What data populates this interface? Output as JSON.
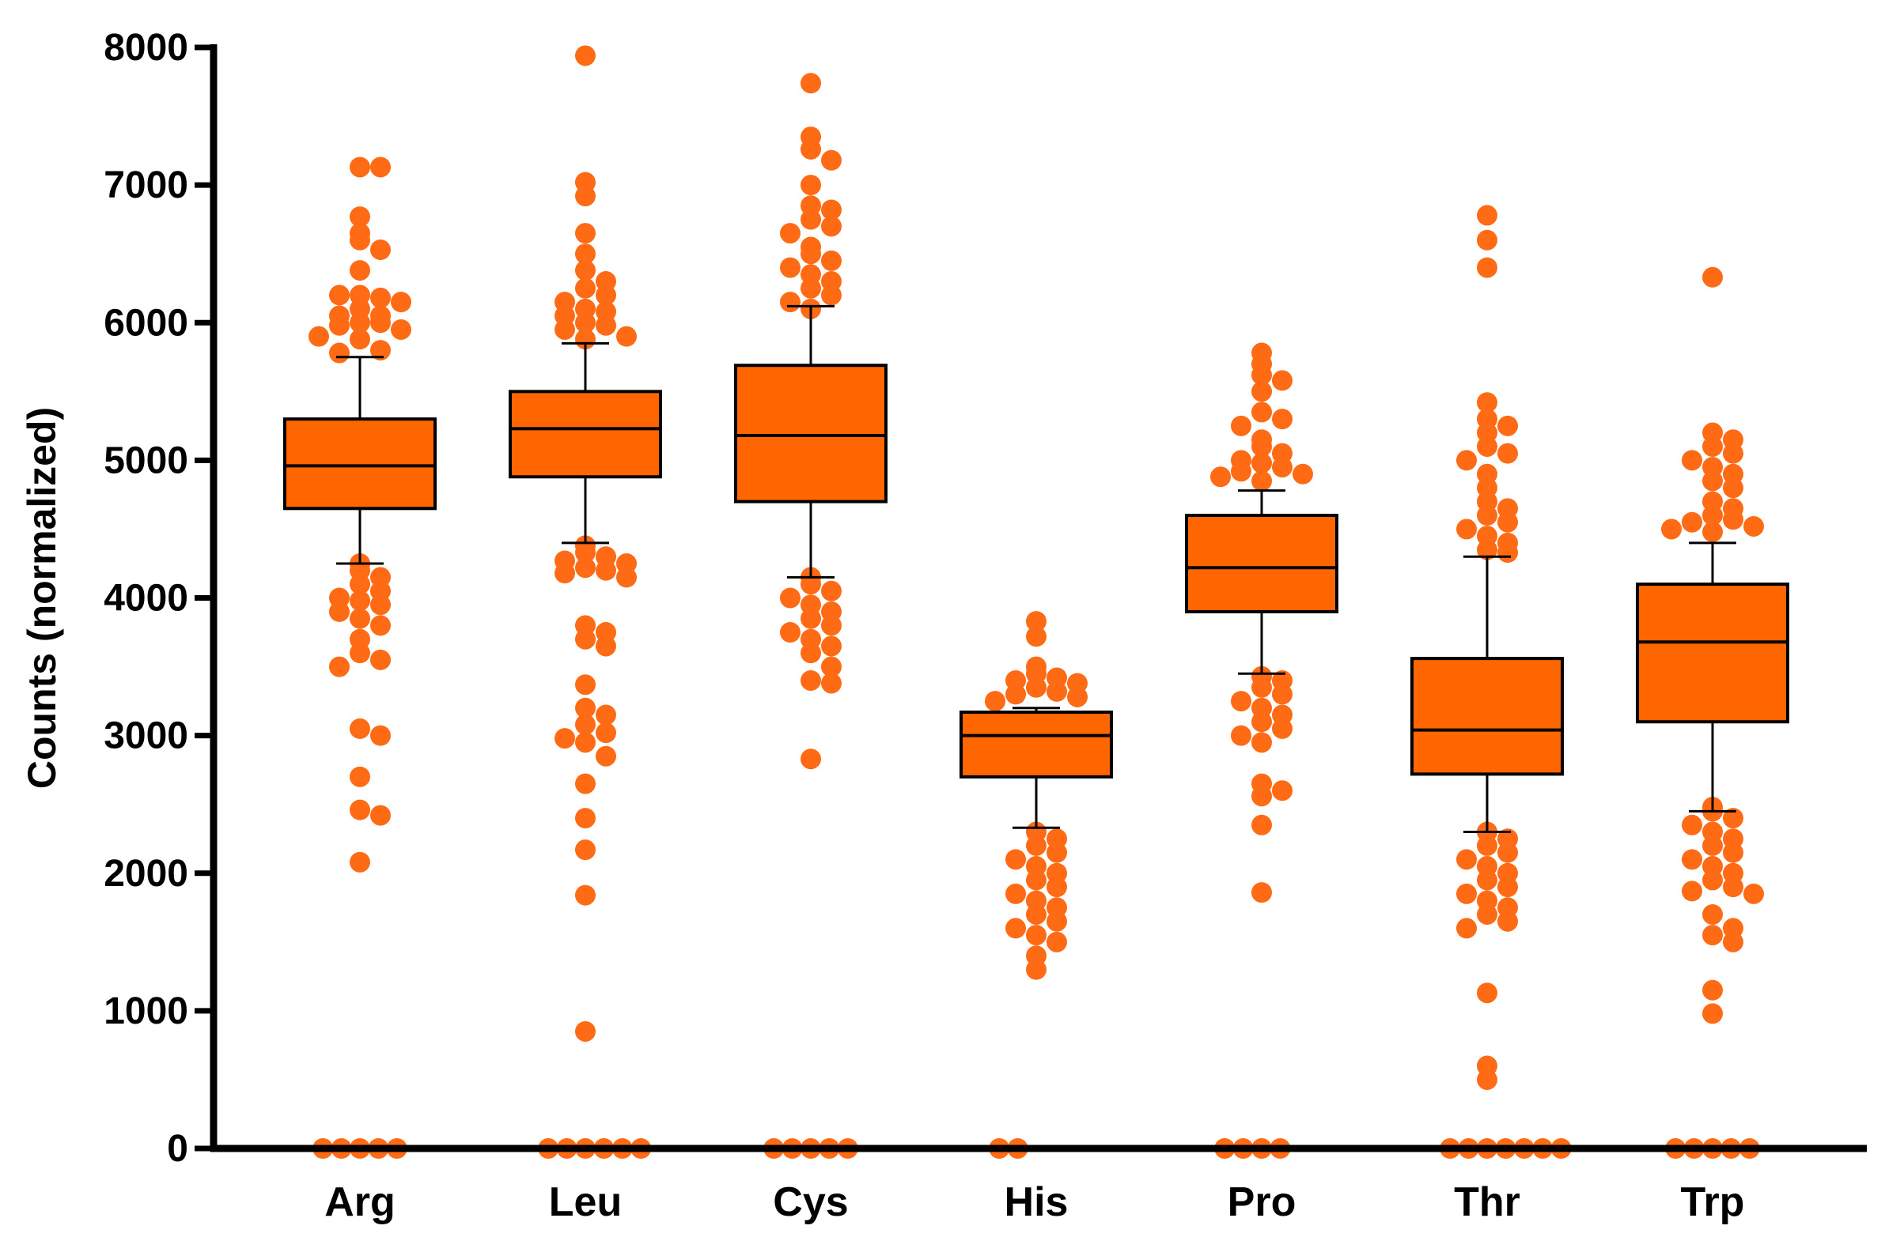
{
  "chart_data": {
    "type": "box",
    "title": "",
    "xlabel": "",
    "ylabel": "Counts (normalized)",
    "ylim": [
      0,
      8000
    ],
    "yticks": [
      0,
      1000,
      2000,
      3000,
      4000,
      5000,
      6000,
      7000,
      8000
    ],
    "grid": false,
    "colors": {
      "box": "#ff6600",
      "point": "#ff6a14",
      "line": "#000000"
    },
    "categories": [
      "Arg",
      "Leu",
      "Cys",
      "His",
      "Pro",
      "Thr",
      "Trp"
    ],
    "boxes": [
      {
        "category": "Arg",
        "whisker_low": 4250,
        "q1": 4650,
        "median": 4960,
        "q3": 5300,
        "whisker_high": 5750
      },
      {
        "category": "Leu",
        "whisker_low": 4400,
        "q1": 4880,
        "median": 5230,
        "q3": 5500,
        "whisker_high": 5850
      },
      {
        "category": "Cys",
        "whisker_low": 4150,
        "q1": 4700,
        "median": 5180,
        "q3": 5690,
        "whisker_high": 6120
      },
      {
        "category": "His",
        "whisker_low": 2330,
        "q1": 2700,
        "median": 3000,
        "q3": 3170,
        "whisker_high": 3200
      },
      {
        "category": "Pro",
        "whisker_low": 3450,
        "q1": 3900,
        "median": 4220,
        "q3": 4600,
        "whisker_high": 4780
      },
      {
        "category": "Thr",
        "whisker_low": 2300,
        "q1": 2720,
        "median": 3040,
        "q3": 3560,
        "whisker_high": 4300
      },
      {
        "category": "Trp",
        "whisker_low": 2450,
        "q1": 3100,
        "median": 3680,
        "q3": 4100,
        "whisker_high": 4400
      }
    ],
    "outliers": [
      {
        "category": "Arg",
        "values": [
          7130,
          7130,
          6770,
          6650,
          6600,
          6530,
          6380,
          6200,
          6180,
          6200,
          6150,
          6100,
          6050,
          6050,
          6000,
          6000,
          5980,
          5950,
          5900,
          5880,
          5800,
          5780,
          4250,
          4200,
          4150,
          4100,
          4050,
          4000,
          3980,
          3950,
          3900,
          3850,
          3800,
          3700,
          3600,
          3550,
          3500,
          3050,
          3000,
          2700,
          2460,
          2420,
          2080,
          0,
          0,
          0,
          0,
          0
        ]
      },
      {
        "category": "Leu",
        "values": [
          7940,
          7020,
          6920,
          6650,
          6500,
          6380,
          6300,
          6250,
          6200,
          6150,
          6100,
          6080,
          6050,
          6000,
          5980,
          5950,
          5900,
          5880,
          4380,
          4330,
          4300,
          4270,
          4250,
          4220,
          4200,
          4180,
          4150,
          3800,
          3750,
          3700,
          3650,
          3370,
          3200,
          3150,
          3080,
          3020,
          2980,
          2950,
          2850,
          2650,
          2400,
          2170,
          1840,
          850,
          0,
          0,
          0,
          0,
          0,
          0
        ]
      },
      {
        "category": "Cys",
        "values": [
          7740,
          7350,
          7260,
          7180,
          7000,
          6850,
          6820,
          6750,
          6700,
          6650,
          6550,
          6500,
          6450,
          6400,
          6350,
          6300,
          6250,
          6200,
          6150,
          6100,
          4150,
          4100,
          4050,
          4000,
          3950,
          3900,
          3850,
          3800,
          3750,
          3700,
          3650,
          3600,
          3500,
          3400,
          3380,
          2830,
          0,
          0,
          0,
          0,
          0
        ]
      },
      {
        "category": "His",
        "values": [
          3830,
          3720,
          3500,
          3450,
          3420,
          3400,
          3380,
          3350,
          3320,
          3300,
          3280,
          3250,
          2300,
          2250,
          2200,
          2150,
          2100,
          2050,
          2000,
          1950,
          1900,
          1850,
          1800,
          1750,
          1700,
          1650,
          1600,
          1550,
          1500,
          1400,
          1300,
          0,
          0
        ]
      },
      {
        "category": "Pro",
        "values": [
          5780,
          5700,
          5620,
          5580,
          5500,
          5350,
          5300,
          5250,
          5150,
          5100,
          5050,
          5000,
          4980,
          4950,
          4920,
          4900,
          4880,
          4850,
          3430,
          3400,
          3350,
          3300,
          3250,
          3200,
          3150,
          3100,
          3050,
          3000,
          2950,
          2650,
          2600,
          2560,
          2350,
          1860,
          0,
          0,
          0,
          0
        ]
      },
      {
        "category": "Thr",
        "values": [
          6780,
          6600,
          6400,
          5420,
          5300,
          5250,
          5200,
          5100,
          5050,
          5000,
          4900,
          4800,
          4700,
          4650,
          4600,
          4550,
          4500,
          4450,
          4400,
          4350,
          4330,
          2300,
          2250,
          2200,
          2150,
          2100,
          2050,
          2000,
          1950,
          1900,
          1850,
          1800,
          1750,
          1700,
          1650,
          1600,
          1130,
          600,
          500,
          0,
          0,
          0,
          0,
          0,
          0,
          0
        ]
      },
      {
        "category": "Trp",
        "values": [
          6330,
          5200,
          5150,
          5100,
          5050,
          5000,
          4950,
          4900,
          4850,
          4800,
          4700,
          4650,
          4600,
          4570,
          4550,
          4520,
          4500,
          4480,
          2480,
          2450,
          2400,
          2350,
          2300,
          2250,
          2200,
          2150,
          2100,
          2050,
          2000,
          1950,
          1900,
          1870,
          1850,
          1700,
          1600,
          1550,
          1500,
          1150,
          980,
          0,
          0,
          0,
          0,
          0
        ]
      }
    ]
  }
}
